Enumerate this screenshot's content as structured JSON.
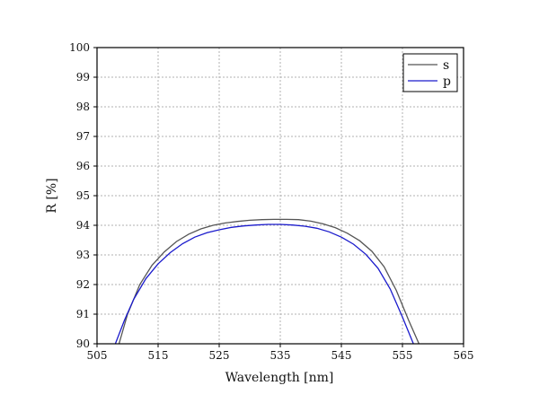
{
  "chart_data": {
    "type": "line",
    "xlabel": "Wavelength [nm]",
    "ylabel": "R [%]",
    "xlim": [
      505,
      565
    ],
    "ylim": [
      90,
      100
    ],
    "x_ticks": [
      505,
      515,
      525,
      535,
      545,
      555,
      565
    ],
    "y_ticks": [
      90,
      91,
      92,
      93,
      94,
      95,
      96,
      97,
      98,
      99,
      100
    ],
    "grid": true,
    "legend_position": "top-right",
    "series": [
      {
        "name": "s",
        "color": "#555555",
        "points": [
          [
            508.6,
            90.0
          ],
          [
            510,
            91.0
          ],
          [
            512,
            92.0
          ],
          [
            514,
            92.65
          ],
          [
            516,
            93.1
          ],
          [
            518,
            93.45
          ],
          [
            520,
            93.7
          ],
          [
            522,
            93.88
          ],
          [
            524,
            94.0
          ],
          [
            526,
            94.08
          ],
          [
            528,
            94.13
          ],
          [
            530,
            94.17
          ],
          [
            532,
            94.19
          ],
          [
            534,
            94.2
          ],
          [
            536,
            94.2
          ],
          [
            538,
            94.19
          ],
          [
            540,
            94.14
          ],
          [
            542,
            94.05
          ],
          [
            544,
            93.92
          ],
          [
            546,
            93.73
          ],
          [
            548,
            93.48
          ],
          [
            550,
            93.12
          ],
          [
            552,
            92.6
          ],
          [
            554,
            91.8
          ],
          [
            556,
            90.8
          ],
          [
            557.7,
            90.0
          ]
        ]
      },
      {
        "name": "p",
        "color": "#1a1acc",
        "points": [
          [
            508.0,
            90.0
          ],
          [
            509.5,
            90.8
          ],
          [
            511,
            91.5
          ],
          [
            513,
            92.2
          ],
          [
            515,
            92.7
          ],
          [
            517,
            93.08
          ],
          [
            519,
            93.38
          ],
          [
            521,
            93.6
          ],
          [
            523,
            93.75
          ],
          [
            525,
            93.85
          ],
          [
            527,
            93.93
          ],
          [
            529,
            93.98
          ],
          [
            531,
            94.01
          ],
          [
            533,
            94.03
          ],
          [
            535,
            94.03
          ],
          [
            537,
            94.01
          ],
          [
            539,
            93.97
          ],
          [
            541,
            93.9
          ],
          [
            543,
            93.78
          ],
          [
            545,
            93.6
          ],
          [
            547,
            93.36
          ],
          [
            549,
            93.02
          ],
          [
            551,
            92.55
          ],
          [
            553,
            91.85
          ],
          [
            555,
            90.9
          ],
          [
            556.8,
            90.0
          ]
        ]
      }
    ]
  }
}
